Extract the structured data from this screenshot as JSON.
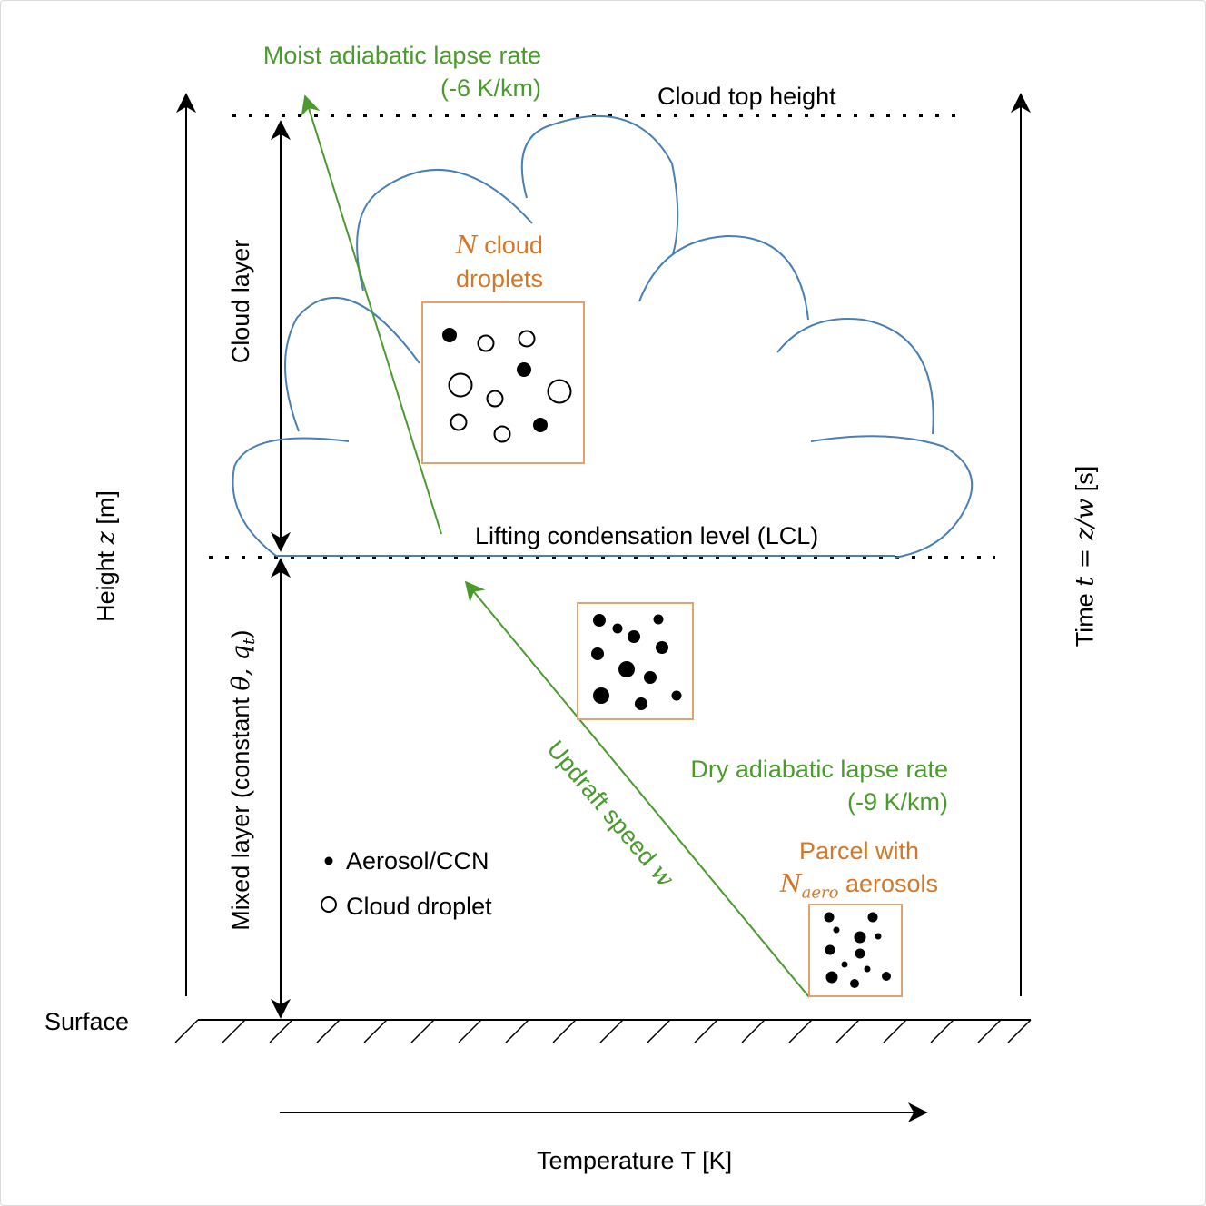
{
  "labels": {
    "moist_title": "Moist adiabatic lapse rate",
    "moist_value": "(-6 K/km)",
    "cloud_top": "Cloud top height",
    "cloud_layer": "Cloud layer",
    "n_symbol": "N",
    "n_cloud_suffix": " cloud",
    "droplets": "droplets",
    "lcl": "Lifting condensation level (LCL)",
    "height_prefix": "Height ",
    "height_symbol": "z",
    "height_suffix": " [m]",
    "mixed_prefix": "Mixed layer (constant ",
    "mixed_symbols": "θ, q",
    "mixed_sub": "t",
    "mixed_suffix": ")",
    "time_prefix": "Time ",
    "time_formula": "t = z/w",
    "time_suffix": " [s]",
    "dry_title": "Dry adiabatic lapse rate",
    "dry_value": "(-9 K/km)",
    "updraft_prefix": "Updraft speed ",
    "updraft_symbol": "w",
    "parcel_line1": "Parcel with",
    "parcel_symbol": "N",
    "parcel_sub": "aero",
    "parcel_suffix": " aerosols",
    "legend_aerosol": "Aerosol/CCN",
    "legend_droplet": "Cloud droplet",
    "surface": "Surface",
    "temperature": "Temperature T [K]"
  },
  "colors": {
    "green": "#4a9a2e",
    "orange": "#d2782a",
    "cloud_outline": "#4a7fb5",
    "box_border": "#e0a36f",
    "black": "#000000"
  }
}
